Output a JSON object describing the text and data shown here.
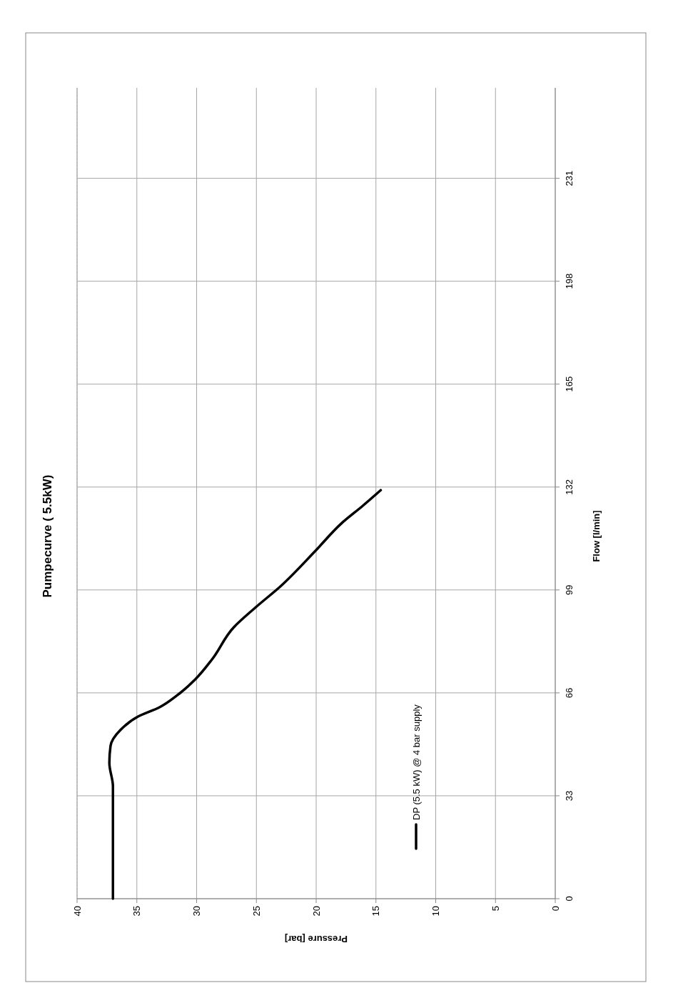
{
  "chart_data": {
    "type": "line",
    "title": "Pumpecurve ( 5.5kW)",
    "xlabel": "Pressure [bar]",
    "ylabel": "Flow [l/min]",
    "xlim": [
      40,
      0
    ],
    "xticks": [
      40,
      35,
      30,
      25,
      20,
      15,
      10,
      5,
      0
    ],
    "ylim": [
      0,
      260
    ],
    "yticks": [
      0,
      33,
      66,
      99,
      132,
      165,
      198,
      231
    ],
    "grid": true,
    "legend": "bottom",
    "series": [
      {
        "name": "DP  (5.5 kW) @ 4 bar supply",
        "color": "#000000",
        "x": [
          37.0,
          37.0,
          37.3,
          37.2,
          36.4,
          34.9,
          33.1,
          31.6,
          30.1,
          28.7,
          26.9,
          25.1,
          23.0,
          20.0,
          17.9,
          16.1,
          14.6
        ],
        "values": [
          0,
          36,
          43.5,
          49,
          54,
          58.4,
          61.4,
          65.3,
          70.4,
          76.8,
          87,
          93.3,
          100.1,
          111.8,
          120.3,
          126,
          131
        ]
      }
    ]
  }
}
